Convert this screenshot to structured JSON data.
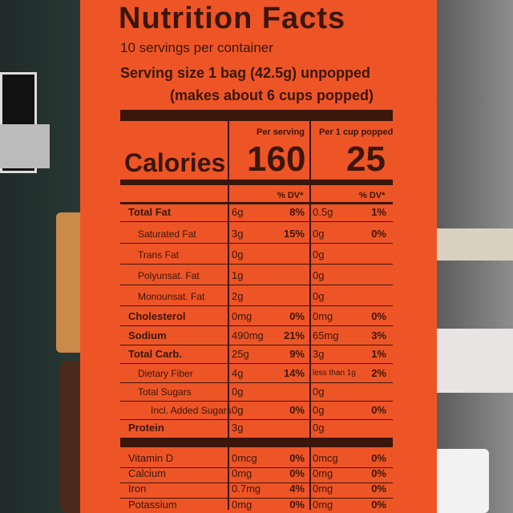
{
  "title": "Nutrition Facts",
  "servings": "10 servings per container",
  "serving_size": [
    "Serving size 1 bag (42.5g) unpopped",
    "(makes about 6 cups popped)"
  ],
  "columns": [
    "Per serving",
    "Per 1 cup popped"
  ],
  "calories": {
    "label": "Calories",
    "per_serving": "160",
    "per_cup": "25"
  },
  "dv_header": [
    "% DV*",
    "% DV*"
  ],
  "rows": [
    {
      "name": "Total Fat",
      "serving": "6g",
      "serving_dv": "8%",
      "cup": "0.5g",
      "cup_dv": "1%"
    },
    {
      "name": "Saturated Fat",
      "serving": "3g",
      "serving_dv": "15%",
      "cup": "0g",
      "cup_dv": "0%"
    },
    {
      "name": "Trans Fat",
      "serving": "0g",
      "cup": "0g"
    },
    {
      "name": "Polyunsat. Fat",
      "serving": "1g",
      "cup": "0g"
    },
    {
      "name": "Monounsat. Fat",
      "serving": "2g",
      "cup": "0g"
    },
    {
      "name": "Cholesterol",
      "serving": "0mg",
      "serving_dv": "0%",
      "cup": "0mg",
      "cup_dv": "0%"
    },
    {
      "name": "Sodium",
      "serving": "490mg",
      "serving_dv": "21%",
      "cup": "65mg",
      "cup_dv": "3%"
    },
    {
      "name": "Total Carb.",
      "serving": "25g",
      "serving_dv": "9%",
      "cup": "3g",
      "cup_dv": "1%"
    },
    {
      "name": "Dietary Fiber",
      "serving": "4g",
      "serving_dv": "14%",
      "cup": "less than 1g",
      "cup_dv": "2%"
    },
    {
      "name": "Total Sugars",
      "serving": "0g",
      "cup": "0g"
    },
    {
      "name": "Incl. Added Sugars",
      "serving": "0g",
      "serving_dv": "0%",
      "cup": "0g",
      "cup_dv": "0%"
    },
    {
      "name": "Protein",
      "serving": "3g",
      "cup": "0g"
    },
    {
      "name": "Vitamin D",
      "serving": "0mcg",
      "serving_dv": "0%",
      "cup": "0mcg",
      "cup_dv": "0%"
    },
    {
      "name": "Calcium",
      "serving": "0mg",
      "serving_dv": "0%",
      "cup": "0mg",
      "cup_dv": "0%"
    },
    {
      "name": "Iron",
      "serving": "0.7mg",
      "serving_dv": "4%",
      "cup": "0mg",
      "cup_dv": "0%"
    },
    {
      "name": "Potassium",
      "serving": "0mg",
      "serving_dv": "0%",
      "cup": "0mg",
      "cup_dv": "0%"
    }
  ]
}
